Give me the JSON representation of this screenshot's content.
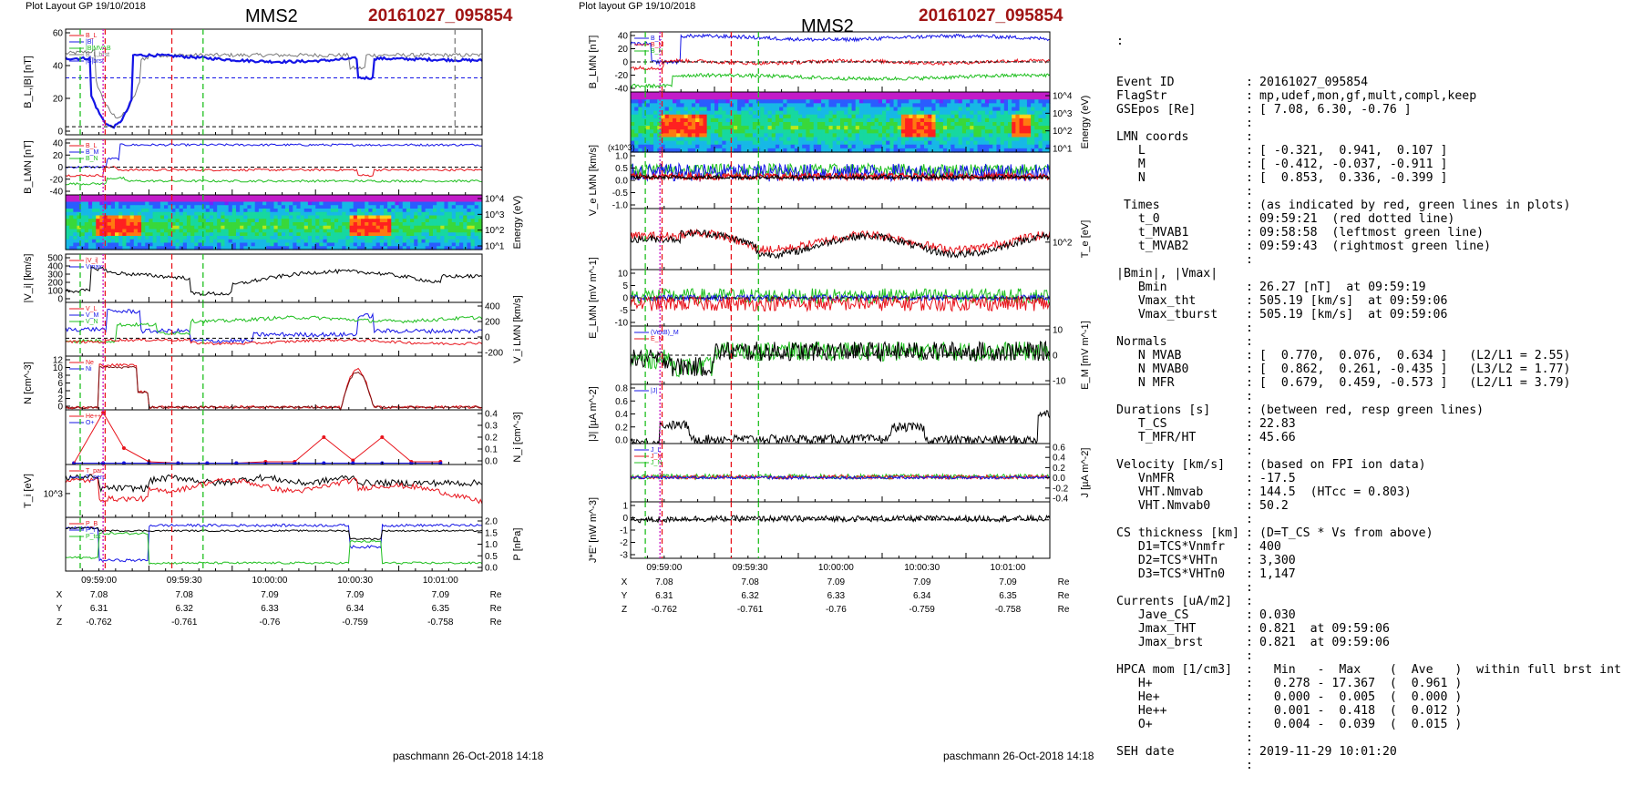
{
  "left": {
    "plot_layout_label": "Plot Layout GP 19/10/2018",
    "spacecraft": "MMS2",
    "event_label": "20161027_095854",
    "footer": "paschmann 26-Oct-2018 14:18"
  },
  "middle": {
    "plot_layout_label": "Plot layout GP 19/10/2018",
    "spacecraft": "MMS2",
    "event_label": "20161027_095854",
    "footer": "paschmann 26-Oct-2018 14:18"
  },
  "colors": {
    "event_red": "#a01414",
    "red": "#e8141c",
    "green": "#1fbf1f",
    "blue": "#1414e6",
    "black": "#000000",
    "gray": "#7a7a7a",
    "magenta": "#c814c8"
  },
  "info": {
    "top_colon": ":",
    "rows": [
      {
        "k": "Event ID",
        "s": ":",
        "v": "20161027_095854"
      },
      {
        "k": "FlagStr",
        "s": ":",
        "v": "mp,udef,mon,gf,mult,compl,keep"
      },
      {
        "k": "GSEpos [Re]",
        "s": ":",
        "v": "[ 7.08, 6.30, -0.76 ]"
      },
      {
        "k": "",
        "s": ":",
        "v": ""
      },
      {
        "k": "LMN coords",
        "s": ":",
        "v": ""
      },
      {
        "k": "   L",
        "s": ":",
        "v": "[ -0.321,  0.941,  0.107 ]"
      },
      {
        "k": "   M",
        "s": ":",
        "v": "[ -0.412, -0.037, -0.911 ]"
      },
      {
        "k": "   N",
        "s": ":",
        "v": "[  0.853,  0.336, -0.399 ]"
      },
      {
        "k": "",
        "s": ":",
        "v": ""
      },
      {
        "k": " Times",
        "s": ":",
        "v": "(as indicated by red, green lines in plots)"
      },
      {
        "k": "   t_0",
        "s": ":",
        "v": "09:59:21  (red dotted line)"
      },
      {
        "k": "   t_MVAB1",
        "s": ":",
        "v": "09:58:58  (leftmost green line)"
      },
      {
        "k": "   t_MVAB2",
        "s": ":",
        "v": "09:59:43  (rightmost green line)"
      },
      {
        "k": "",
        "s": ":",
        "v": ""
      },
      {
        "k": "|Bmin|, |Vmax|",
        "s": "",
        "v": ""
      },
      {
        "k": "   Bmin",
        "s": ":",
        "v": "26.27 [nT]  at 09:59:19"
      },
      {
        "k": "   Vmax_tht",
        "s": ":",
        "v": "505.19 [km/s]  at 09:59:06"
      },
      {
        "k": "   Vmax_tburst",
        "s": ":",
        "v": "505.19 [km/s]  at 09:59:06"
      },
      {
        "k": "",
        "s": ":",
        "v": ""
      },
      {
        "k": "Normals",
        "s": ":",
        "v": ""
      },
      {
        "k": "   N MVAB",
        "s": ":",
        "v": "[  0.770,  0.076,  0.634 ]   (L2/L1 = 2.55)"
      },
      {
        "k": "   N MVAB0",
        "s": ":",
        "v": "[  0.862,  0.261, -0.435 ]   (L3/L2 = 1.77)"
      },
      {
        "k": "   N MFR",
        "s": ":",
        "v": "[  0.679,  0.459, -0.573 ]   (L2/L1 = 3.79)"
      },
      {
        "k": "",
        "s": ":",
        "v": ""
      },
      {
        "k": "Durations [s]",
        "s": ":",
        "v": "(between red, resp green lines)"
      },
      {
        "k": "   T_CS",
        "s": ":",
        "v": "22.83"
      },
      {
        "k": "   T_MFR/HT",
        "s": ":",
        "v": "45.66"
      },
      {
        "k": "",
        "s": ":",
        "v": ""
      },
      {
        "k": "Velocity [km/s]",
        "s": ":",
        "v": "(based on FPI ion data)"
      },
      {
        "k": "   VnMFR",
        "s": ":",
        "v": "-17.5"
      },
      {
        "k": "   VHT.Nmvab",
        "s": ":",
        "v": "144.5  (HTcc = 0.803)"
      },
      {
        "k": "   VHT.Nmvab0",
        "s": ":",
        "v": "50.2"
      },
      {
        "k": "",
        "s": ":",
        "v": ""
      },
      {
        "k": "CS thickness [km]",
        "s": ":",
        "v": "(D=T_CS * Vs from above)"
      },
      {
        "k": "   D1=TCS*Vnmfr",
        "s": ":",
        "v": "400"
      },
      {
        "k": "   D2=TCS*VHTn",
        "s": ":",
        "v": "3,300"
      },
      {
        "k": "   D3=TCS*VHTn0",
        "s": ":",
        "v": "1,147"
      },
      {
        "k": "",
        "s": ":",
        "v": ""
      },
      {
        "k": "Currents [uA/m2]",
        "s": ":",
        "v": ""
      },
      {
        "k": "   Jave_CS",
        "s": ":",
        "v": "0.030"
      },
      {
        "k": "   Jmax_THT",
        "s": ":",
        "v": "0.821  at 09:59:06"
      },
      {
        "k": "   Jmax_brst",
        "s": ":",
        "v": "0.821  at 09:59:06"
      },
      {
        "k": "",
        "s": ":",
        "v": ""
      },
      {
        "k": "HPCA mom [1/cm3]",
        "s": ":",
        "v": "  Min   -  Max    (  Ave   )  within full brst int"
      },
      {
        "k": "   H+",
        "s": ":",
        "v": "  0.278 - 17.367  (  0.961 )"
      },
      {
        "k": "   He+",
        "s": ":",
        "v": "  0.000 -  0.005  (  0.000 )"
      },
      {
        "k": "   He++",
        "s": ":",
        "v": "  0.001 -  0.418  (  0.012 )"
      },
      {
        "k": "   O+",
        "s": ":",
        "v": "  0.004 -  0.039  (  0.015 )"
      },
      {
        "k": "",
        "s": ":",
        "v": ""
      },
      {
        "k": "SEH date",
        "s": ":",
        "v": "2019-11-29 10:01:20"
      },
      {
        "k": "",
        "s": ":",
        "v": ""
      }
    ]
  },
  "chart_data": [
    {
      "id": "left",
      "type": "line",
      "time_ticks": [
        "09:59:00",
        "09:59:30",
        "10:00:00",
        "10:00:30",
        "10:01:00"
      ],
      "position_rows": {
        "labels": [
          "X",
          "Y",
          "Z"
        ],
        "values": [
          [
            "7.08",
            "7.08",
            "7.09",
            "7.09",
            "7.09"
          ],
          [
            "6.31",
            "6.32",
            "6.33",
            "6.34",
            "6.35"
          ],
          [
            "-0.762",
            "-0.761",
            "-0.76",
            "-0.759",
            "-0.758"
          ]
        ],
        "unit": "Re"
      },
      "panels": [
        {
          "ylabel": "B_L,|B| [nT]",
          "yticks_left": [
            "60",
            "40",
            "20",
            "0"
          ],
          "ylim": [
            -5,
            60
          ],
          "legend": [
            "B_L",
            "|B|",
            "|B|MVAB",
            "B_L,brst",
            "|B|brst"
          ]
        },
        {
          "ylabel": "B_LMN [nT]",
          "yticks_left": [
            "40",
            "20",
            "0",
            "-20",
            "-40"
          ],
          "ylim": [
            -50,
            50
          ],
          "legend": [
            "B_L",
            "B_M",
            "B_N"
          ]
        },
        {
          "ylabel": "Energy (eV)",
          "yticks_right": [
            "10^4",
            "10^3",
            "10^2",
            "10^1"
          ],
          "type": "spectrogram"
        },
        {
          "ylabel": "|V_i| [km/s]",
          "yticks_left": [
            "500",
            "400",
            "300",
            "200",
            "100",
            "0"
          ],
          "ylim": [
            0,
            500
          ],
          "legend": [
            "|V_i|",
            "Vmax"
          ]
        },
        {
          "ylabel": "V_i LMN [km/s]",
          "yticks_right": [
            "400",
            "200",
            "0",
            "-200"
          ],
          "ylim": [
            -200,
            400
          ],
          "legend": [
            "V_L",
            "V_M",
            "V_N"
          ]
        },
        {
          "ylabel": "N [cm^-3]",
          "yticks_left": [
            "12",
            "10",
            "8",
            "6",
            "4",
            "2",
            "0"
          ],
          "ylim": [
            0,
            12
          ],
          "legend": [
            "Ne",
            "Ni"
          ]
        },
        {
          "ylabel": "N_i [cm^-3]",
          "yticks_right": [
            "0.4",
            "0.3",
            "0.2",
            "0.1",
            "0.0"
          ],
          "ylim": [
            0,
            0.4
          ],
          "legend": [
            "He++",
            "O+"
          ]
        },
        {
          "ylabel": "T_i [eV]",
          "yticks_left": [
            "10^3"
          ],
          "legend": [
            "T_par",
            "T_perp"
          ]
        },
        {
          "ylabel": "P [nPa]",
          "yticks_right": [
            "2.0",
            "1.5",
            "1.0",
            "0.5",
            "0.0"
          ],
          "ylim": [
            0,
            2
          ],
          "legend": [
            "P_B",
            "P_i",
            "P_tot"
          ]
        }
      ]
    },
    {
      "id": "middle",
      "type": "line",
      "time_ticks": [
        "09:59:00",
        "09:59:30",
        "10:00:00",
        "10:00:30",
        "10:01:00"
      ],
      "position_rows": {
        "labels": [
          "X",
          "Y",
          "Z"
        ],
        "values": [
          [
            "7.08",
            "7.08",
            "7.09",
            "7.09",
            "7.09"
          ],
          [
            "6.31",
            "6.32",
            "6.33",
            "6.34",
            "6.35"
          ],
          [
            "-0.762",
            "-0.761",
            "-0.76",
            "-0.759",
            "-0.758"
          ]
        ],
        "unit": "Re"
      },
      "panels": [
        {
          "ylabel": "B_LMN [nT]",
          "yticks_left": [
            "40",
            "20",
            "0",
            "-20",
            "-40"
          ],
          "ylim": [
            -50,
            50
          ],
          "legend": [
            "B_L",
            "B_M",
            "B_N"
          ]
        },
        {
          "ylabel": "Energy (eV)",
          "yticks_right": [
            "10^4",
            "10^3",
            "10^2",
            "10^1"
          ],
          "type": "spectrogram"
        },
        {
          "ylabel": "V_e LMN [km/s]",
          "yunit": "(x10^3)",
          "yticks_left": [
            "1.0",
            "0.5",
            "0.0",
            "-0.5",
            "-1.0"
          ],
          "ylim": [
            -1.2,
            1.0
          ]
        },
        {
          "ylabel": "T_e [eV]",
          "yticks_right": [
            "10^2"
          ]
        },
        {
          "ylabel": "E_LMN [mV m^-1]",
          "yticks_left": [
            "10",
            "5",
            "0",
            "-5",
            "-10"
          ],
          "ylim": [
            -15,
            15
          ]
        },
        {
          "ylabel": "E_M [mV m^-1]",
          "yticks_right": [
            "10",
            "0",
            "-10"
          ],
          "ylim": [
            -15,
            15
          ],
          "legend": [
            "(VexB)_M",
            "E_M"
          ]
        },
        {
          "ylabel": "|J| [µA m^-2]",
          "yticks_left": [
            "0.8",
            "0.6",
            "0.4",
            "0.2",
            "0.0"
          ],
          "ylim": [
            0,
            0.8
          ],
          "legend": [
            "|J|"
          ]
        },
        {
          "ylabel": "J [µA m^-2]",
          "yticks_right": [
            "0.6",
            "0.4",
            "0.2",
            "0.0",
            "-0.2",
            "-0.4"
          ],
          "ylim": [
            -0.5,
            0.7
          ],
          "legend": [
            "J_L",
            "J_M",
            "J_N"
          ]
        },
        {
          "ylabel": "J*E' [nW m^-3]",
          "yticks_left": [
            "1",
            "0",
            "-1",
            "-2",
            "-3"
          ],
          "ylim": [
            -3.2,
            1.5
          ]
        }
      ]
    }
  ]
}
